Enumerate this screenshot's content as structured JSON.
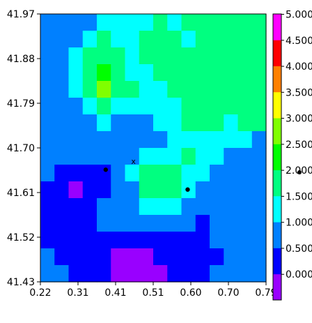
{
  "chart_data": {
    "type": "heatmap",
    "title": "",
    "xlabel": "",
    "ylabel": "",
    "xlim": [
      0.22,
      0.79
    ],
    "ylim": [
      41.43,
      41.97
    ],
    "x_ticks": [
      "0.22",
      "0.31",
      "0.41",
      "0.51",
      "0.60",
      "0.70",
      "0.79"
    ],
    "y_ticks": [
      "41.43",
      "41.52",
      "41.61",
      "41.70",
      "41.79",
      "41.88",
      "41.97"
    ],
    "colorbar": {
      "labels": [
        "0.000",
        "0.500",
        "1.000",
        "1.500",
        "2.000",
        "2.500",
        "3.000",
        "3.500",
        "4.000",
        "4.500",
        "5.000"
      ],
      "levels": [
        0.0,
        0.5,
        1.0,
        1.5,
        2.0,
        2.5,
        3.0,
        3.5,
        4.0,
        4.5,
        5.0
      ],
      "colors": [
        "#9900ff",
        "#0000ff",
        "#0080ff",
        "#00ffff",
        "#00ff80",
        "#00ff00",
        "#80ff00",
        "#ffff00",
        "#ff8000",
        "#ff0000",
        "#ff00ff"
      ]
    },
    "grid_values": [
      [
        1.1,
        1.3,
        1.2,
        1.4,
        1.6,
        1.7,
        1.8,
        1.9,
        2.0,
        1.9,
        2.0,
        2.1,
        2.3,
        2.1,
        2.0,
        2.2
      ],
      [
        1.0,
        1.2,
        1.3,
        1.6,
        2.0,
        1.9,
        1.8,
        2.0,
        2.1,
        2.0,
        1.9,
        2.2,
        2.2,
        2.4,
        2.1,
        2.0
      ],
      [
        1.2,
        1.3,
        1.5,
        2.1,
        2.3,
        2.1,
        1.9,
        2.0,
        2.0,
        2.1,
        2.0,
        2.1,
        2.0,
        2.2,
        2.3,
        2.2
      ],
      [
        1.1,
        1.2,
        1.7,
        2.2,
        2.6,
        2.2,
        1.9,
        1.9,
        2.0,
        2.1,
        2.2,
        2.1,
        2.0,
        2.1,
        2.1,
        2.2
      ],
      [
        1.0,
        1.1,
        1.6,
        2.3,
        3.2,
        2.3,
        2.0,
        1.7,
        1.8,
        2.0,
        2.2,
        2.0,
        2.1,
        2.2,
        2.4,
        2.1
      ],
      [
        1.1,
        1.2,
        1.4,
        1.8,
        2.1,
        1.9,
        1.6,
        1.5,
        1.6,
        1.8,
        2.0,
        2.1,
        2.0,
        2.2,
        2.1,
        2.2
      ],
      [
        1.0,
        1.1,
        1.2,
        1.4,
        1.5,
        1.4,
        1.3,
        1.4,
        1.6,
        1.7,
        2.0,
        2.0,
        2.0,
        1.9,
        2.0,
        2.0
      ],
      [
        1.0,
        1.1,
        1.1,
        1.2,
        1.3,
        1.3,
        1.2,
        1.3,
        1.4,
        1.6,
        1.8,
        1.9,
        1.8,
        1.6,
        1.5,
        1.4
      ],
      [
        1.1,
        1.2,
        1.1,
        1.0,
        1.1,
        1.2,
        1.3,
        1.5,
        1.7,
        1.9,
        2.1,
        1.9,
        1.6,
        1.4,
        1.2,
        1.1
      ],
      [
        1.0,
        0.8,
        0.6,
        0.7,
        0.8,
        1.0,
        1.5,
        2.0,
        2.1,
        2.1,
        1.9,
        1.6,
        1.3,
        1.1,
        1.1,
        1.0
      ],
      [
        0.9,
        0.6,
        0.4,
        0.5,
        0.8,
        1.0,
        1.4,
        2.1,
        2.2,
        2.0,
        1.6,
        1.4,
        1.2,
        1.2,
        1.1,
        1.0
      ],
      [
        0.8,
        0.7,
        0.6,
        0.8,
        1.0,
        1.1,
        1.2,
        1.5,
        1.6,
        1.5,
        1.3,
        1.2,
        1.3,
        1.2,
        1.1,
        1.0
      ],
      [
        0.8,
        0.8,
        0.9,
        0.9,
        1.0,
        1.1,
        1.1,
        1.1,
        1.1,
        1.2,
        1.0,
        0.9,
        1.1,
        1.2,
        1.1,
        1.0
      ],
      [
        0.7,
        0.8,
        0.8,
        0.7,
        0.7,
        0.7,
        0.6,
        0.6,
        0.7,
        0.8,
        0.9,
        0.9,
        1.0,
        1.1,
        1.1,
        1.0
      ],
      [
        1.1,
        0.9,
        0.7,
        0.8,
        0.6,
        0.4,
        0.3,
        0.4,
        0.5,
        0.7,
        0.8,
        0.7,
        0.8,
        1.0,
        1.1,
        1.2
      ],
      [
        1.2,
        1.0,
        0.8,
        0.9,
        0.6,
        0.3,
        0.2,
        0.3,
        0.4,
        0.6,
        0.7,
        0.8,
        1.0,
        1.1,
        1.2,
        1.1
      ]
    ],
    "markers": [
      {
        "x": 0.385,
        "y": 41.656,
        "symbol": "dot"
      },
      {
        "x": 0.592,
        "y": 41.616,
        "symbol": "dot"
      },
      {
        "x": 0.455,
        "y": 41.673,
        "symbol": "x",
        "label": "x"
      }
    ],
    "grid": false,
    "legend": "right colorbar"
  }
}
